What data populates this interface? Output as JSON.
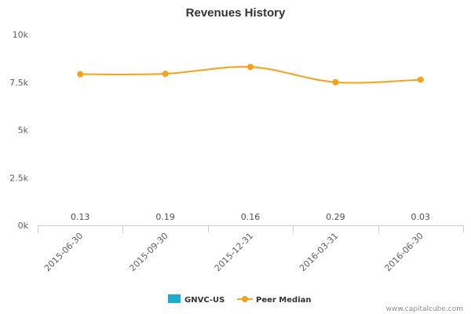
{
  "chart_data": {
    "type": "line",
    "title": "Revenues History",
    "categories": [
      "2015-06-30",
      "2015-09-30",
      "2015-12-31",
      "2016-03-31",
      "2016-06-30"
    ],
    "y_ticks": [
      "0k",
      "2.5k",
      "5k",
      "7.5k",
      "10k"
    ],
    "ylim": [
      0,
      10000
    ],
    "grid": false,
    "series": [
      {
        "name": "GNVC-US",
        "color": "#1aadce",
        "values": [
          0.13,
          0.19,
          0.16,
          0.29,
          0.03
        ],
        "data_labels": [
          "0.13",
          "0.19",
          "0.16",
          "0.29",
          "0.03"
        ]
      },
      {
        "name": "Peer Median",
        "color": "#f7a11a",
        "values": [
          7920,
          7940,
          8300,
          7500,
          7630
        ]
      }
    ],
    "legend_position": "bottom-center",
    "credit": "www.capitalcube.com"
  }
}
